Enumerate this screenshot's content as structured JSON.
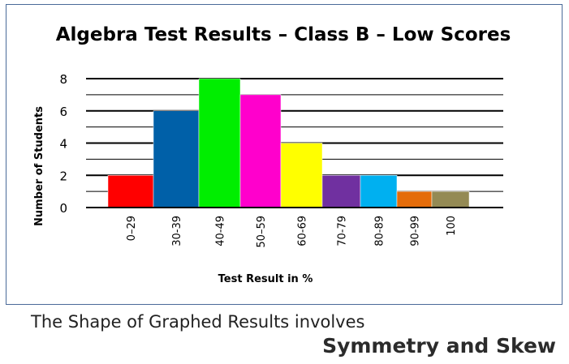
{
  "chart_data": {
    "type": "bar",
    "title": "Algebra Test Results – Class B – Low Scores",
    "xlabel": "Test Result in %",
    "ylabel": "Number of Students",
    "categories": [
      "0–29",
      "30-39",
      "40-49",
      "50–59",
      "60-69",
      "70-79",
      "80-89",
      "90-99",
      "100"
    ],
    "values": [
      2,
      6,
      8,
      7,
      4,
      2,
      2,
      1,
      1
    ],
    "colors": [
      "#ff0000",
      "#0060a8",
      "#00ee00",
      "#ff00cc",
      "#ffff00",
      "#7030a0",
      "#00b0f0",
      "#e46c0a",
      "#948a54"
    ],
    "ylim": [
      0,
      8
    ],
    "yticks": [
      0,
      2,
      4,
      6,
      8
    ],
    "grid": true
  },
  "footer": {
    "caption": "The Shape of Graphed Results involves",
    "subtitle": "Symmetry and Skew"
  }
}
